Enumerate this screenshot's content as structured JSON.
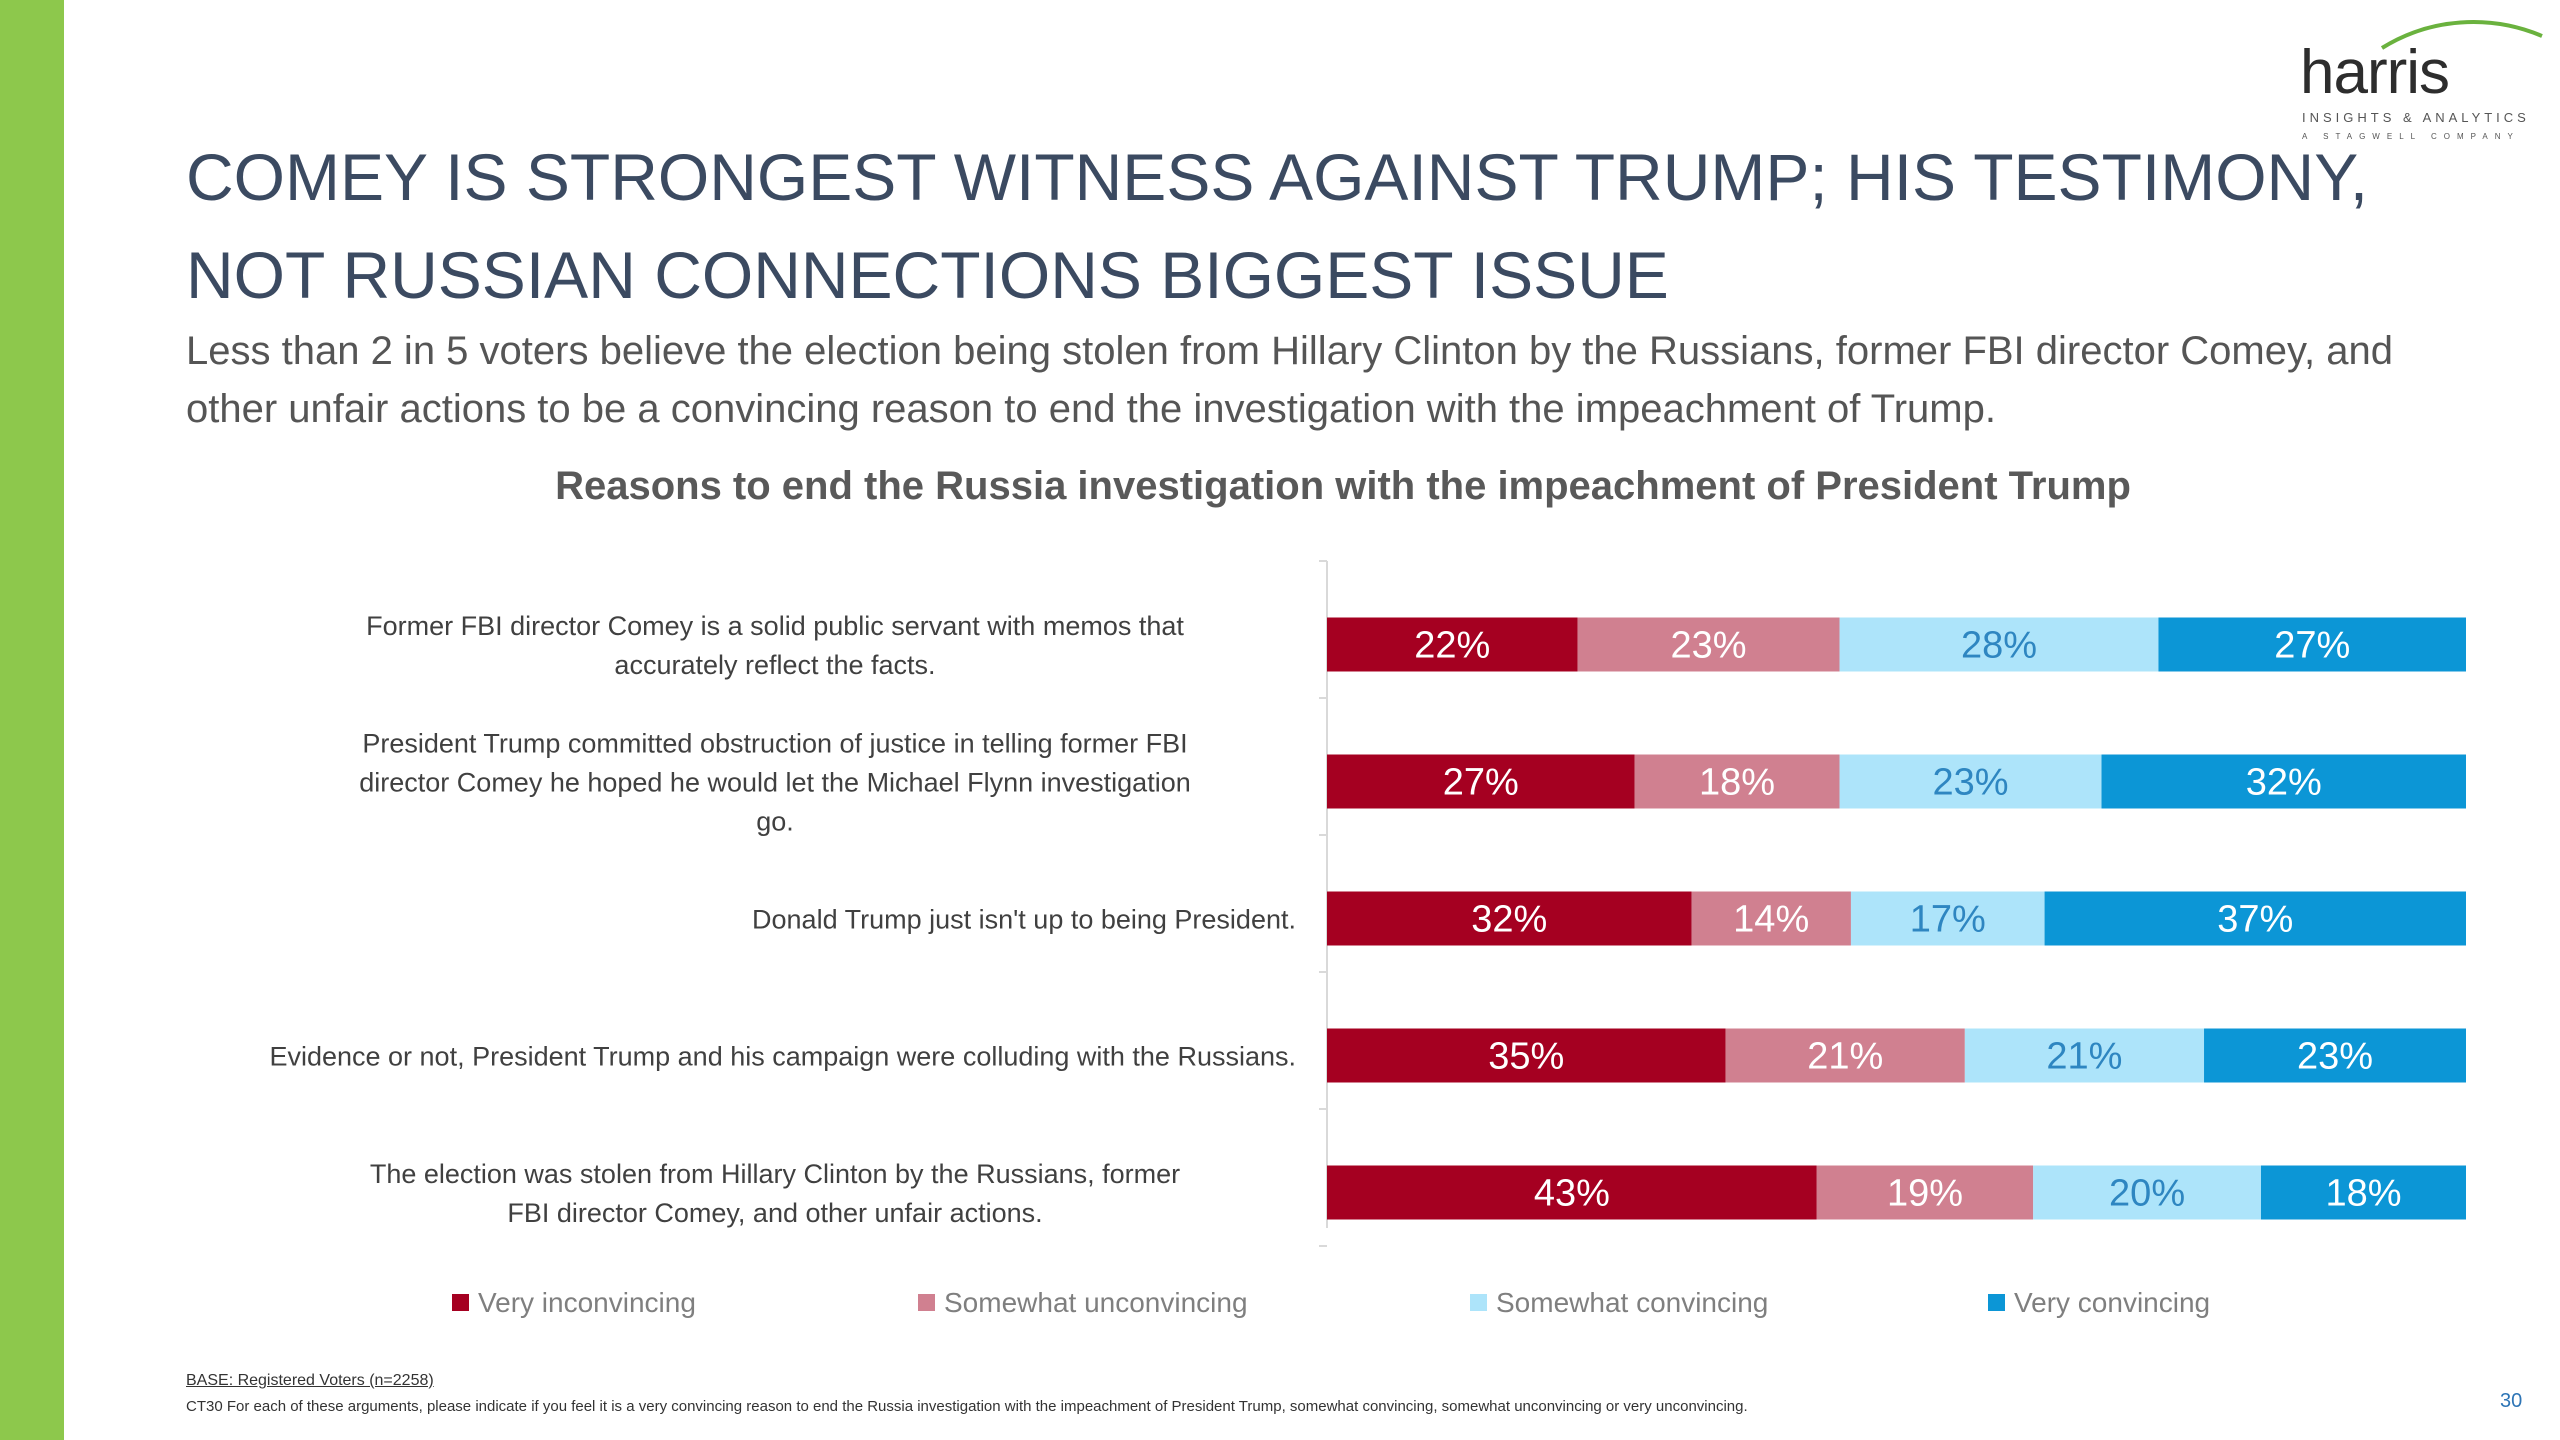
{
  "slide": {
    "title": "COMEY IS STRONGEST WITNESS AGAINST TRUMP; HIS TESTIMONY, NOT RUSSIAN CONNECTIONS BIGGEST ISSUE",
    "subtitle": "Less than 2 in 5 voters believe the election being stolen from Hillary Clinton by the Russians, former FBI director Comey, and other unfair actions to be a convincing reason to end the investigation with the impeachment of Trump.",
    "footnote_base": "BASE: Registered Voters (n=2258)",
    "footnote_question": "CT30 For each of these arguments, please indicate if you feel it is a very convincing reason to end the Russia investigation with the impeachment of President Trump, somewhat convincing, somewhat unconvincing or very unconvincing.",
    "page_number": "30",
    "accent_color": "#8dc84c"
  },
  "logo": {
    "word": "harris",
    "tagline": "INSIGHTS & ANALYTICS",
    "subline": "A STAGWELL COMPANY"
  },
  "chart_data": {
    "type": "bar",
    "orientation": "horizontal",
    "stacked": true,
    "percent_stacked": true,
    "title": "Reasons to end the Russia investigation with the impeachment of President Trump",
    "categories": [
      "Former FBI director Comey is a solid public servant with memos that accurately reflect the facts.",
      "President Trump committed obstruction of justice in telling former FBI director Comey he hoped he would let the Michael Flynn investigation go.",
      "Donald Trump just isn't up to being President.",
      "Evidence or not, President Trump and his campaign were colluding with the Russians.",
      "The election was stolen from Hillary Clinton by the Russians, former FBI director Comey, and other unfair actions."
    ],
    "series": [
      {
        "name": "Very inconvincing",
        "color": "#a50021",
        "label_color": "#ffffff",
        "values": [
          22,
          27,
          32,
          35,
          43
        ]
      },
      {
        "name": "Somewhat unconvincing",
        "color": "#d08090",
        "label_color": "#ffffff",
        "values": [
          23,
          18,
          14,
          21,
          19
        ]
      },
      {
        "name": "Somewhat convincing",
        "color": "#ade4fa",
        "label_color": "#2e86c1",
        "values": [
          28,
          23,
          17,
          21,
          20
        ]
      },
      {
        "name": "Very convincing",
        "color": "#0c96d6",
        "label_color": "#ffffff",
        "values": [
          27,
          32,
          37,
          23,
          18
        ]
      }
    ],
    "value_suffix": "%",
    "legend_position": "bottom",
    "grid": false
  }
}
